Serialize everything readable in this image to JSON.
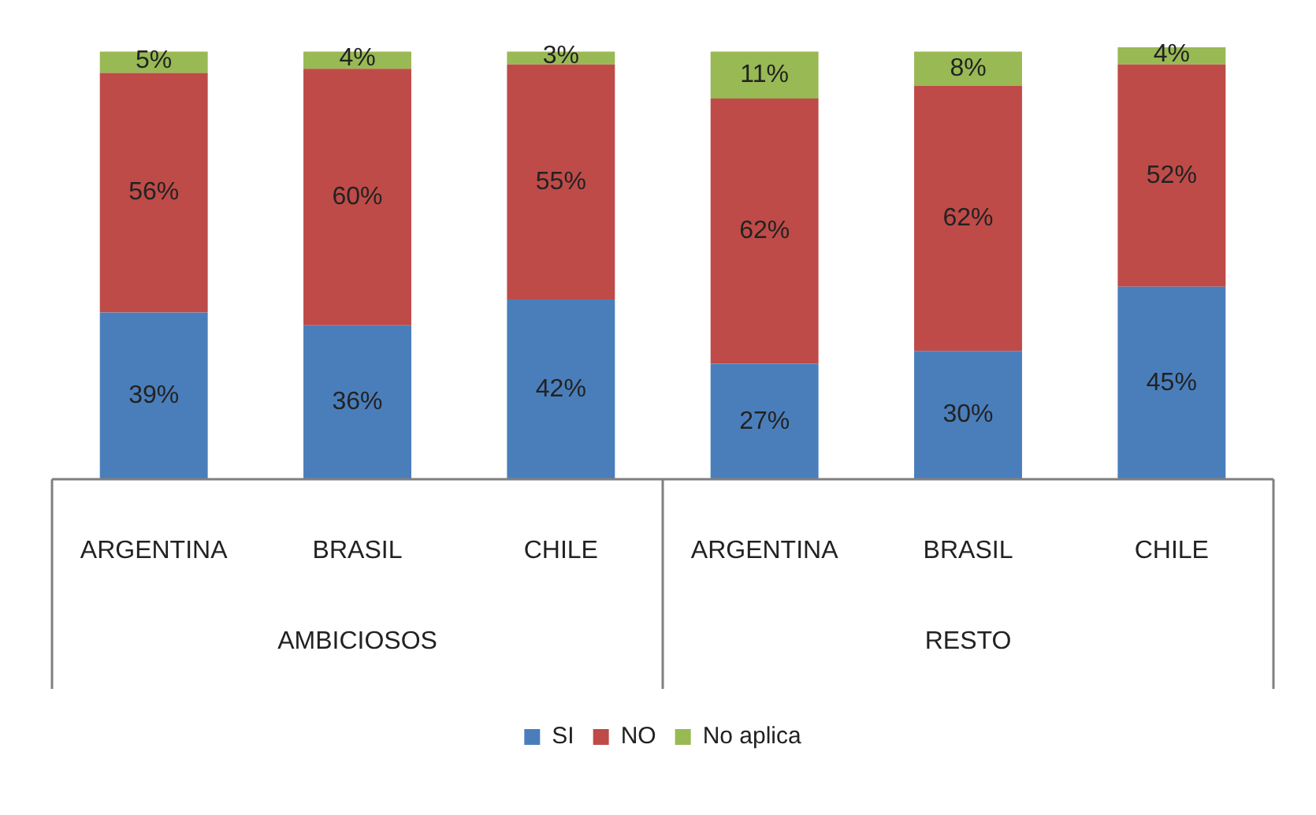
{
  "chart_data": {
    "type": "bar",
    "stacked": true,
    "legend": "bottom",
    "grid": false,
    "categories": [
      "ARGENTINA",
      "BRASIL",
      "CHILE",
      "ARGENTINA",
      "BRASIL",
      "CHILE"
    ],
    "annotations": [
      "AMBICIOSOS",
      "RESTO"
    ],
    "series": [
      {
        "name": "SI",
        "color": "#4a7ebb",
        "values": [
          39,
          36,
          42,
          27,
          30,
          45
        ],
        "value_labels": [
          "39%",
          "36%",
          "42%",
          "27%",
          "30%",
          "45%"
        ]
      },
      {
        "name": "NO",
        "color": "#be4b48",
        "values": [
          56,
          60,
          55,
          62,
          62,
          52
        ],
        "value_labels": [
          "56%",
          "60%",
          "55%",
          "62%",
          "62%",
          "52%"
        ]
      },
      {
        "name": "No aplica",
        "color": "#98b954",
        "values": [
          5,
          4,
          3,
          11,
          8,
          4
        ],
        "value_labels": [
          "5%",
          "4%",
          "3%",
          "11%",
          "8%",
          "4%"
        ]
      }
    ]
  }
}
